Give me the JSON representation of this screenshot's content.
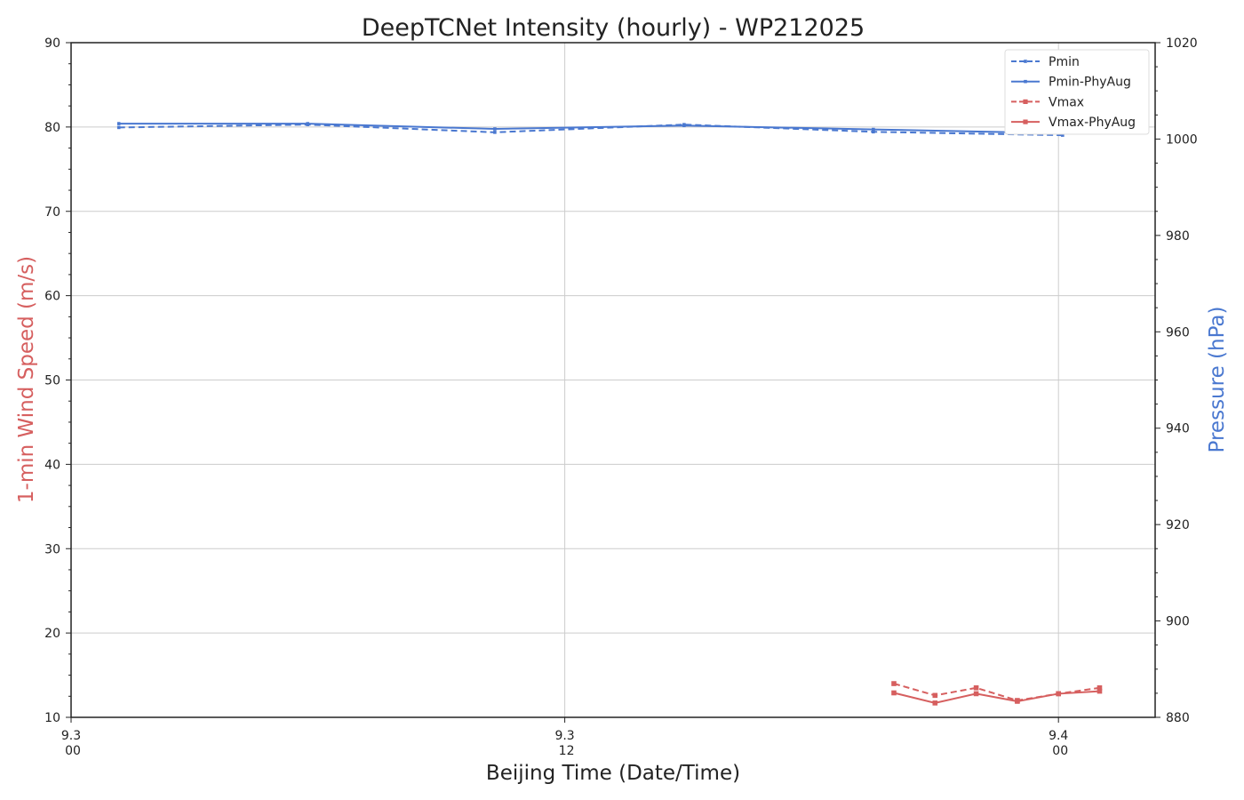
{
  "chart_data": {
    "type": "line",
    "title": "DeepTCNet Intensity (hourly) - WP212025",
    "xlabel": "Beijing Time (Date/Time)",
    "ylabel_left": "1-min Wind Speed (m/s)",
    "ylabel_right": "Pressure (hPa)",
    "x_unit": "hours since 9.3 00",
    "xlim": [
      0,
      26.35
    ],
    "ylim_left": [
      10,
      90
    ],
    "ylim_right": [
      880,
      1020
    ],
    "x_ticks": [
      {
        "x": 0,
        "line1": "9.3",
        "line2": "00"
      },
      {
        "x": 12,
        "line1": "9.3",
        "line2": "12"
      },
      {
        "x": 24,
        "line1": "9.4",
        "line2": "00"
      }
    ],
    "yticks_left": [
      "10",
      "20",
      "30",
      "40",
      "50",
      "60",
      "70",
      "80",
      "90"
    ],
    "yticks_right": [
      "880",
      "900",
      "920",
      "940",
      "960",
      "980",
      "1000",
      "1020"
    ],
    "grid": true,
    "legend_position": "top-right",
    "series": [
      {
        "name": "Pmin",
        "axis": "right",
        "style": "dashed",
        "color": "#4a78d0",
        "x": [
          1.16,
          5.75,
          10.3,
          14.9,
          19.5,
          24.1
        ],
        "values": [
          1002.4,
          1003.0,
          1001.4,
          1003.0,
          1001.5,
          1000.8
        ]
      },
      {
        "name": "Pmin-PhyAug",
        "axis": "right",
        "style": "solid",
        "color": "#4a78d0",
        "x": [
          1.16,
          5.75,
          10.3,
          14.9,
          19.5,
          24.1
        ],
        "values": [
          1003.2,
          1003.2,
          1002.1,
          1002.8,
          1002.0,
          1001.2
        ]
      },
      {
        "name": "Vmax",
        "axis": "left",
        "style": "dashed",
        "color": "#d65f5f",
        "x": [
          20,
          21,
          22,
          23,
          24,
          25
        ],
        "values": [
          14.0,
          12.6,
          13.5,
          12.0,
          12.8,
          13.5
        ]
      },
      {
        "name": "Vmax-PhyAug",
        "axis": "left",
        "style": "solid",
        "color": "#d65f5f",
        "x": [
          20,
          21,
          22,
          23,
          24,
          25
        ],
        "values": [
          12.9,
          11.7,
          12.8,
          11.9,
          12.8,
          13.1
        ]
      }
    ]
  }
}
